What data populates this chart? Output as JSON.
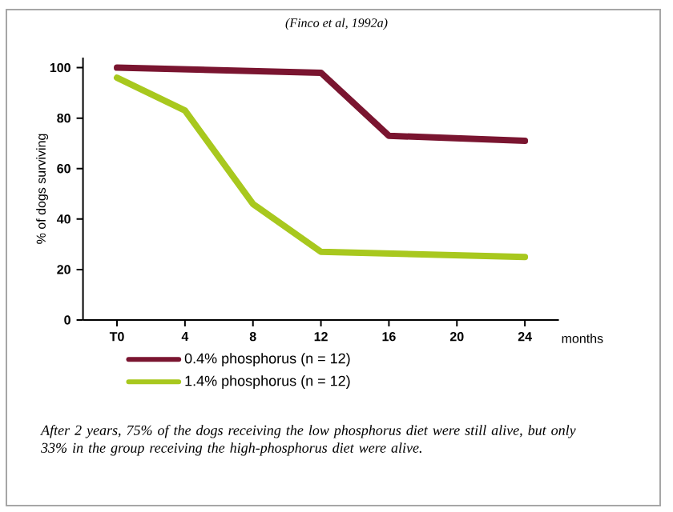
{
  "chart_data": {
    "type": "line",
    "title": "(Finco et al, 1992a)",
    "ylabel": "% of dogs surviving",
    "xlabel": "months",
    "xlim": [
      -2,
      26
    ],
    "xticks": [
      {
        "value": 0,
        "label": "T0"
      },
      4,
      8,
      12,
      16,
      20,
      24
    ],
    "ylim": [
      0,
      104
    ],
    "yticks": [
      0,
      20,
      40,
      60,
      80,
      100
    ],
    "series": [
      {
        "name": "0.4% phosphorus (n = 12)",
        "color": "#7a1530",
        "x": [
          0,
          12,
          16,
          24
        ],
        "values": [
          100,
          98,
          73,
          71
        ]
      },
      {
        "name": "1.4% phosphorus (n = 12)",
        "color": "#a8c81e",
        "x": [
          0,
          4,
          8,
          12,
          24
        ],
        "values": [
          96,
          83,
          46,
          27,
          25
        ]
      }
    ],
    "legend": "bottom",
    "grid": false,
    "marker": "none",
    "line_style": "solid",
    "annotations": [
      "After 2 years, 75% of the dogs receiving the low phosphorus diet were still alive, but only 33% in the group receiving the high-phosphorus diet were alive."
    ]
  }
}
